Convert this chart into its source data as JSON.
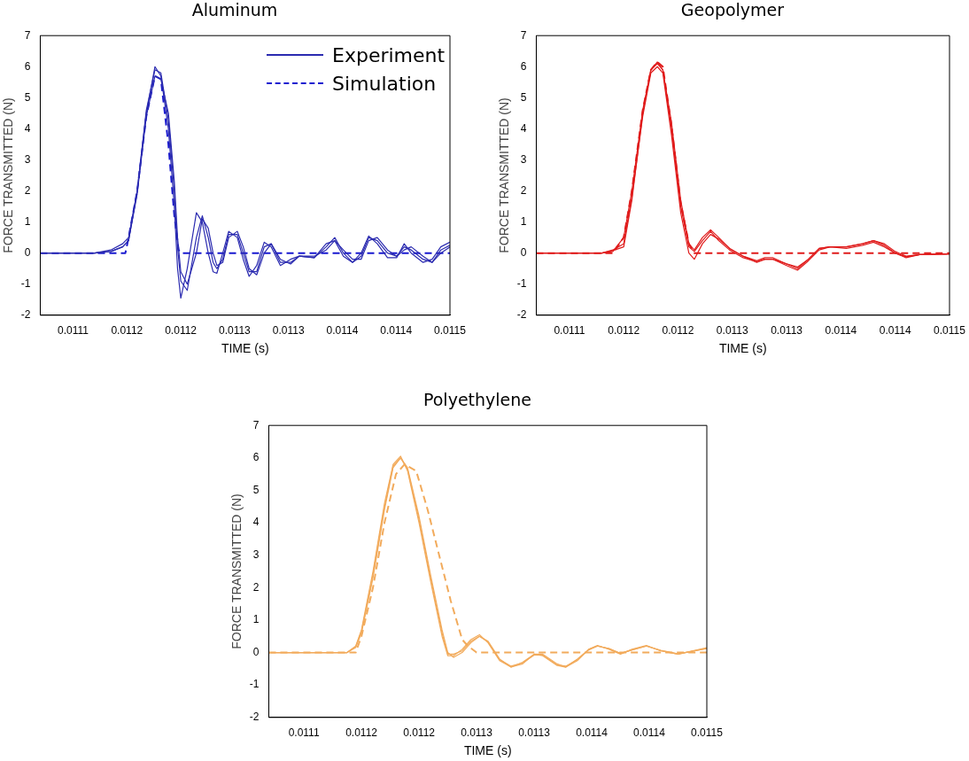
{
  "chart_data": [
    {
      "type": "line",
      "title": "Aluminum",
      "xlabel": "TIME (s)",
      "ylabel": "FORCE TRANSMITTED (N)",
      "xlim": [
        0.0110695,
        0.01145
      ],
      "ylim": [
        -2,
        7
      ],
      "xticks": [
        {
          "value": 0.0111,
          "label": "0.0111"
        },
        {
          "value": 0.01115,
          "label": "0.0112"
        },
        {
          "value": 0.0112,
          "label": "0.0112"
        },
        {
          "value": 0.01125,
          "label": "0.0113"
        },
        {
          "value": 0.0113,
          "label": "0.0113"
        },
        {
          "value": 0.01135,
          "label": "0.0114"
        },
        {
          "value": 0.0114,
          "label": "0.0114"
        },
        {
          "value": 0.01145,
          "label": "0.0115"
        }
      ],
      "yticks": [
        -2,
        -1,
        0,
        1,
        2,
        3,
        4,
        5,
        6,
        7
      ],
      "legend": "top right",
      "marker": "none",
      "series": [
        {
          "name": "Experiment",
          "color": "#2b2bb0",
          "line_style": "solid",
          "x": [
            0.0110695,
            0.01112,
            0.011135,
            0.011146,
            0.0111515,
            0.0111595,
            0.011168,
            0.011176,
            0.0111815,
            0.0111885,
            0.011194,
            0.011197,
            0.0112,
            0.011206,
            0.0112145,
            0.01122,
            0.0112255,
            0.01123,
            0.0112335,
            0.011239,
            0.0112445,
            0.0112525,
            0.011258,
            0.0112635,
            0.0112705,
            0.0112775,
            0.011284,
            0.0112925,
            0.011302,
            0.01131,
            0.011324,
            0.011335,
            0.011343,
            0.011351,
            0.0113595,
            0.0113675,
            0.0113745,
            0.0113825,
            0.011392,
            0.0114005,
            0.0114075,
            0.011414,
            0.011425,
            0.0114335,
            0.0114415,
            0.01145
          ],
          "values": [
            0,
            0,
            0.1,
            0.3,
            0.5,
            2.0,
            4.5,
            6.0,
            5.7,
            4.0,
            1.5,
            -0.5,
            -1.45,
            -0.5,
            1.3,
            1.0,
            0,
            -0.6,
            -0.65,
            0,
            0.7,
            0.5,
            -0.2,
            -0.75,
            -0.4,
            0.35,
            0.2,
            -0.4,
            -0.2,
            -0.1,
            -0.15,
            0.3,
            0.4,
            -0.1,
            -0.3,
            0,
            0.55,
            0.3,
            -0.15,
            -0.15,
            0.3,
            0,
            -0.3,
            -0.2,
            0.2,
            0.35
          ]
        },
        {
          "color": "#2b2bb0",
          "line_style": "solid",
          "x": [
            0.0110695,
            0.01112,
            0.011135,
            0.011146,
            0.0111515,
            0.0111595,
            0.011168,
            0.011176,
            0.0111815,
            0.0111885,
            0.011194,
            0.011197,
            0.0112,
            0.011206,
            0.0112145,
            0.01122,
            0.0112255,
            0.01123,
            0.0112335,
            0.011239,
            0.0112445,
            0.0112525,
            0.011258,
            0.0112635,
            0.0112705,
            0.0112775,
            0.011284,
            0.0112925,
            0.011302,
            0.01131,
            0.011324,
            0.011335,
            0.011343,
            0.011351,
            0.0113595,
            0.0113675,
            0.0113745,
            0.0113825,
            0.011392,
            0.0114005,
            0.0114075,
            0.011414,
            0.011425,
            0.0114335,
            0.0114415,
            0.01145
          ],
          "values": [
            0,
            0,
            0.05,
            0.2,
            0.4,
            2.0,
            4.6,
            5.9,
            5.8,
            4.3,
            2.0,
            0.2,
            -0.9,
            -1.2,
            0.5,
            1.2,
            0.5,
            -0.3,
            -0.5,
            -0.2,
            0.6,
            0.6,
            0,
            -0.6,
            -0.6,
            0.2,
            0.3,
            -0.3,
            -0.3,
            -0.1,
            -0.15,
            0.2,
            0.5,
            0,
            -0.3,
            -0.1,
            0.5,
            0.4,
            0,
            -0.1,
            0.2,
            0.1,
            -0.2,
            -0.3,
            0.1,
            0.25
          ]
        },
        {
          "color": "#2b2bb0",
          "line_style": "solid",
          "x": [
            0.0110695,
            0.01112,
            0.011135,
            0.011146,
            0.0111515,
            0.0111595,
            0.011168,
            0.011176,
            0.0111815,
            0.0111885,
            0.011194,
            0.011197,
            0.0112,
            0.011206,
            0.0112145,
            0.01122,
            0.0112255,
            0.01123,
            0.0112335,
            0.011239,
            0.0112445,
            0.0112525,
            0.011258,
            0.0112635,
            0.0112705,
            0.0112775,
            0.011284,
            0.0112925,
            0.011302,
            0.01131,
            0.011324,
            0.011335,
            0.011343,
            0.011351,
            0.0113595,
            0.0113675,
            0.0113745,
            0.0113825,
            0.011392,
            0.0114005,
            0.0114075,
            0.011414,
            0.011425,
            0.0114335,
            0.0114415,
            0.01145
          ],
          "values": [
            0,
            0,
            0.05,
            0.2,
            0.4,
            1.9,
            4.4,
            5.7,
            5.6,
            4.5,
            2.3,
            0.5,
            -0.6,
            -1.0,
            0,
            1.1,
            0.8,
            0,
            -0.4,
            -0.3,
            0.5,
            0.7,
            0.2,
            -0.5,
            -0.7,
            0,
            0.3,
            -0.2,
            -0.35,
            -0.1,
            -0.1,
            0.1,
            0.4,
            0.1,
            -0.2,
            -0.2,
            0.4,
            0.5,
            0.1,
            -0.1,
            0.1,
            0.2,
            -0.1,
            -0.3,
            0,
            0.2
          ]
        },
        {
          "name": "Simulation",
          "color": "#1a1ad0",
          "line_style": "dashed",
          "x": [
            0.0110695,
            0.0111485,
            0.0111495,
            0.0111515,
            0.0111595,
            0.011168,
            0.011176,
            0.0111815,
            0.0111885,
            0.011194,
            0.011198,
            0.0112,
            0.01145
          ],
          "values": [
            0,
            0,
            0.15,
            0.5,
            2.0,
            4.4,
            5.7,
            5.6,
            3.5,
            1.2,
            0.1,
            0,
            0
          ]
        }
      ]
    },
    {
      "type": "line",
      "title": "Geopolymer",
      "xlabel": "TIME (s)",
      "ylabel": "FORCE TRANSMITTED (N)",
      "xlim": [
        0.0110695,
        0.01145
      ],
      "ylim": [
        -2,
        7
      ],
      "xticks": [
        {
          "value": 0.0111,
          "label": "0.0111"
        },
        {
          "value": 0.01115,
          "label": "0.0112"
        },
        {
          "value": 0.0112,
          "label": "0.0112"
        },
        {
          "value": 0.01125,
          "label": "0.0113"
        },
        {
          "value": 0.0113,
          "label": "0.0113"
        },
        {
          "value": 0.01135,
          "label": "0.0114"
        },
        {
          "value": 0.0114,
          "label": "0.0114"
        },
        {
          "value": 0.01145,
          "label": "0.0115"
        }
      ],
      "yticks": [
        -2,
        -1,
        0,
        1,
        2,
        3,
        4,
        5,
        6,
        7
      ],
      "marker": "none",
      "series": [
        {
          "color": "#e01c1c",
          "line_style": "solid",
          "x": [
            0.0110695,
            0.01113,
            0.01114,
            0.01115,
            0.0111575,
            0.0111675,
            0.011175,
            0.011181,
            0.011186,
            0.011194,
            0.0112025,
            0.01121,
            0.011215,
            0.0112225,
            0.01123,
            0.0112375,
            0.0112475,
            0.01126,
            0.0112725,
            0.01128,
            0.0112875,
            0.0113,
            0.01131,
            0.01132,
            0.01133,
            0.01134,
            0.011355,
            0.01137,
            0.01138,
            0.01139,
            0.0114,
            0.01141,
            0.0114225,
            0.01145
          ],
          "values": [
            0,
            0,
            0.05,
            0.5,
            2.0,
            4.6,
            5.9,
            6.15,
            5.9,
            4.0,
            1.5,
            0.2,
            0.05,
            0.4,
            0.7,
            0.4,
            0.1,
            -0.15,
            -0.28,
            -0.2,
            -0.2,
            -0.35,
            -0.5,
            -0.2,
            0.15,
            0.2,
            0.2,
            0.3,
            0.4,
            0.25,
            0,
            -0.15,
            -0.05,
            -0.03
          ]
        },
        {
          "color": "#e01c1c",
          "line_style": "solid",
          "x": [
            0.0110695,
            0.01113,
            0.01114,
            0.01115,
            0.0111575,
            0.0111675,
            0.011175,
            0.011181,
            0.011186,
            0.011194,
            0.0112025,
            0.01121,
            0.011215,
            0.0112225,
            0.01123,
            0.0112375,
            0.0112475,
            0.01126,
            0.0112725,
            0.01128,
            0.0112875,
            0.0113,
            0.01131,
            0.01132,
            0.01133,
            0.01134,
            0.011355,
            0.01137,
            0.01138,
            0.01139,
            0.0114,
            0.01141,
            0.0114225,
            0.01145
          ],
          "values": [
            0,
            0,
            0.1,
            0.3,
            1.8,
            4.4,
            5.8,
            6.0,
            5.8,
            3.8,
            1.3,
            0.0,
            -0.2,
            0.3,
            0.6,
            0.45,
            0.15,
            -0.1,
            -0.3,
            -0.2,
            -0.2,
            -0.4,
            -0.55,
            -0.25,
            0.1,
            0.2,
            0.15,
            0.25,
            0.35,
            0.2,
            0,
            -0.12,
            -0.05,
            -0.03
          ]
        },
        {
          "color": "#e01c1c",
          "line_style": "solid",
          "x": [
            0.0110695,
            0.01113,
            0.01114,
            0.01115,
            0.0111575,
            0.0111675,
            0.011175,
            0.011181,
            0.011186,
            0.011194,
            0.0112025,
            0.01121,
            0.011215,
            0.0112225,
            0.01123,
            0.0112375,
            0.0112475,
            0.01126,
            0.0112725,
            0.01128,
            0.0112875,
            0.0113,
            0.01131,
            0.01132,
            0.01133,
            0.01134,
            0.011355,
            0.01137,
            0.01138,
            0.01139,
            0.0114,
            0.01141,
            0.0114225,
            0.01145
          ],
          "values": [
            0,
            0,
            0.08,
            0.2,
            1.7,
            4.5,
            5.9,
            6.1,
            5.9,
            4.2,
            1.7,
            0.3,
            0.1,
            0.5,
            0.75,
            0.5,
            0.15,
            -0.1,
            -0.25,
            -0.15,
            -0.15,
            -0.35,
            -0.45,
            -0.2,
            0.15,
            0.2,
            0.2,
            0.3,
            0.4,
            0.3,
            0.05,
            -0.1,
            -0.05,
            -0.03
          ]
        },
        {
          "color": "#e01c1c",
          "line_style": "dashed",
          "x": [
            0.0110695,
            0.01114,
            0.01115,
            0.0111575,
            0.0111675,
            0.011175,
            0.011181,
            0.011186,
            0.011194,
            0.0112025,
            0.01121,
            0.011215,
            0.01145
          ],
          "values": [
            0,
            0,
            0.5,
            2.0,
            4.6,
            5.9,
            6.15,
            6.0,
            4.1,
            1.6,
            0.3,
            0,
            0
          ]
        }
      ]
    },
    {
      "type": "line",
      "title": "Polyethylene",
      "xlabel": "TIME (s)",
      "ylabel": "FORCE TRANSMITTED (N)",
      "xlim": [
        0.0110695,
        0.01145
      ],
      "ylim": [
        -2,
        7
      ],
      "xticks": [
        {
          "value": 0.0111,
          "label": "0.0111"
        },
        {
          "value": 0.01115,
          "label": "0.0112"
        },
        {
          "value": 0.0112,
          "label": "0.0112"
        },
        {
          "value": 0.01125,
          "label": "0.0113"
        },
        {
          "value": 0.0113,
          "label": "0.0113"
        },
        {
          "value": 0.01135,
          "label": "0.0114"
        },
        {
          "value": 0.0114,
          "label": "0.0114"
        },
        {
          "value": 0.01145,
          "label": "0.0115"
        }
      ],
      "yticks": [
        -2,
        -1,
        0,
        1,
        2,
        3,
        4,
        5,
        6,
        7
      ],
      "marker": "none",
      "series": [
        {
          "color": "#f2ab5c",
          "line_style": "solid",
          "x": [
            0.0110695,
            0.0111375,
            0.011145,
            0.01115,
            0.01116,
            0.01117,
            0.0111775,
            0.011184,
            0.01119,
            0.0112,
            0.01121,
            0.01122,
            0.011225,
            0.01123,
            0.0112375,
            0.011245,
            0.0112525,
            0.01126,
            0.01127,
            0.01128,
            0.01129,
            0.0113,
            0.0113075,
            0.01132,
            0.0113275,
            0.0113375,
            0.0113475,
            0.011355,
            0.011365,
            0.011375,
            0.011385,
            0.0113975,
            0.01141,
            0.011425,
            0.01145
          ],
          "values": [
            0,
            0,
            0.2,
            0.7,
            2.5,
            4.6,
            5.8,
            6.05,
            5.6,
            4.0,
            2.2,
            0.5,
            -0.1,
            -0.1,
            0.1,
            0.4,
            0.55,
            0.3,
            -0.25,
            -0.45,
            -0.3,
            -0.05,
            -0.1,
            -0.4,
            -0.45,
            -0.2,
            0.1,
            0.22,
            0.1,
            -0.05,
            0.1,
            0.22,
            0.05,
            -0.05,
            0.15
          ]
        },
        {
          "color": "#f2ab5c",
          "line_style": "solid",
          "x": [
            0.0110695,
            0.0111375,
            0.011145,
            0.01115,
            0.01116,
            0.01117,
            0.0111775,
            0.011184,
            0.01119,
            0.0112,
            0.01121,
            0.01122,
            0.011225,
            0.01123,
            0.0112375,
            0.011245,
            0.0112525,
            0.01126,
            0.01127,
            0.01128,
            0.01129,
            0.0113,
            0.0113075,
            0.01132,
            0.0113275,
            0.0113375,
            0.0113475,
            0.011355,
            0.011365,
            0.011375,
            0.011385,
            0.0113975,
            0.01141,
            0.011425,
            0.01145
          ],
          "values": [
            0,
            0,
            0.15,
            0.6,
            2.3,
            4.4,
            5.7,
            6.0,
            5.7,
            4.2,
            2.4,
            0.7,
            0.0,
            -0.15,
            0.0,
            0.3,
            0.5,
            0.35,
            -0.2,
            -0.45,
            -0.35,
            -0.05,
            -0.05,
            -0.35,
            -0.45,
            -0.25,
            0.1,
            0.2,
            0.12,
            -0.03,
            0.08,
            0.2,
            0.07,
            -0.04,
            0.12
          ]
        },
        {
          "color": "#f2ab5c",
          "line_style": "solid",
          "x": [
            0.0110695,
            0.0111375,
            0.011145,
            0.01115,
            0.01116,
            0.01117,
            0.0111775,
            0.011184,
            0.01119,
            0.0112,
            0.01121,
            0.01122,
            0.011225,
            0.01123,
            0.0112375,
            0.011245,
            0.0112525,
            0.01126,
            0.01127,
            0.01128,
            0.01129,
            0.0113,
            0.0113075,
            0.01132,
            0.0113275,
            0.0113375,
            0.0113475,
            0.011355,
            0.011365,
            0.011375,
            0.011385,
            0.0113975,
            0.01141,
            0.011425,
            0.01145
          ],
          "values": [
            0,
            0,
            0.18,
            0.65,
            2.4,
            4.5,
            5.75,
            6.0,
            5.65,
            4.1,
            2.3,
            0.6,
            -0.05,
            -0.05,
            0.05,
            0.35,
            0.5,
            0.32,
            -0.22,
            -0.42,
            -0.32,
            -0.08,
            -0.08,
            -0.38,
            -0.42,
            -0.22,
            0.08,
            0.2,
            0.12,
            -0.03,
            0.08,
            0.2,
            0.06,
            -0.05,
            0.13
          ]
        },
        {
          "color": "#f2ab5c",
          "line_style": "dashed",
          "x": [
            0.0110695,
            0.011145,
            0.01115,
            0.01116,
            0.01117,
            0.01118,
            0.0111875,
            0.0111975,
            0.0112075,
            0.0112175,
            0.0112275,
            0.0112375,
            0.0112425,
            0.01125,
            0.01145
          ],
          "values": [
            0,
            0,
            0.5,
            2.0,
            4.0,
            5.5,
            5.8,
            5.6,
            4.4,
            3.0,
            1.6,
            0.4,
            0.2,
            0,
            0
          ]
        }
      ]
    }
  ]
}
